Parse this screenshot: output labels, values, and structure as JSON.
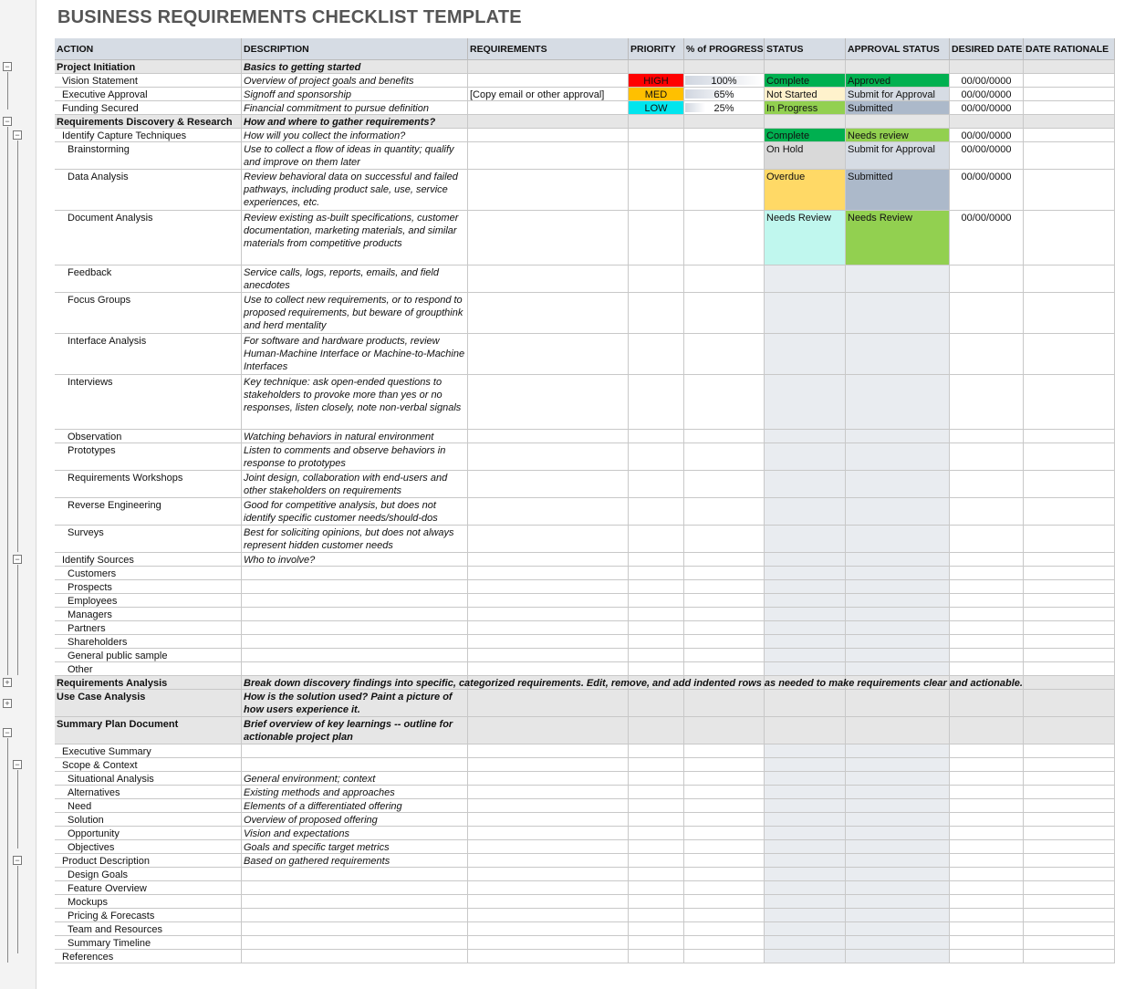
{
  "title": "BUSINESS REQUIREMENTS CHECKLIST TEMPLATE",
  "headers": [
    "ACTION",
    "DESCRIPTION",
    "REQUIREMENTS",
    "PRIORITY",
    "% of PROGRESS",
    "STATUS",
    "APPROVAL STATUS",
    "DESIRED DATE",
    "DATE RATIONALE"
  ],
  "colors": {
    "HIGH": "#ff0000",
    "MED": "#ffc000",
    "LOW": "#00e5ee",
    "Complete": "#00b050",
    "Approved": "#00b050",
    "Not Started": "#fff2cc",
    "Submit for Approval": "#d6dce4",
    "In Progress": "#92d050",
    "Submitted": "#acb9ca",
    "Needs review": "#92d050",
    "On Hold": "#d9d9d9",
    "Overdue": "#ffd966",
    "Needs Review": "#c0f7ee",
    "Needs Review (approval)": "#92d050",
    "header": "#d6dce4",
    "section": "#e6e6e6"
  },
  "rows": [
    {
      "action": "Project Initiation",
      "desc": "Basics to getting started",
      "kind": "sec",
      "lines": 1
    },
    {
      "action": "Vision Statement",
      "desc": "Overview of project goals and benefits",
      "priority": "HIGH",
      "progress": "100%",
      "status": "Complete",
      "approval": "Approved",
      "date": "00/00/0000",
      "lines": 1,
      "level": 1
    },
    {
      "action": "Executive Approval",
      "desc": "Signoff and sponsorship",
      "req": "[Copy email or other approval]",
      "priority": "MED",
      "progress": "65%",
      "status": "Not Started",
      "approval": "Submit for Approval",
      "date": "00/00/0000",
      "lines": 1,
      "level": 1
    },
    {
      "action": "Funding Secured",
      "desc": "Financial commitment to pursue definition",
      "priority": "LOW",
      "progress": "25%",
      "status": "In Progress",
      "approval": "Submitted",
      "date": "00/00/0000",
      "lines": 1,
      "level": 1
    },
    {
      "action": "Requirements Discovery & Research",
      "desc": "How and where to gather requirements?",
      "kind": "sec",
      "lines": 1
    },
    {
      "action": "Identify Capture Techniques",
      "desc": "How will you collect the information?",
      "status": "Complete",
      "approval": "Needs review",
      "date": "00/00/0000",
      "lines": 1,
      "level": 1
    },
    {
      "action": "Brainstorming",
      "desc": "Use to collect a flow of ideas in quantity; qualify and improve on them later",
      "status": "On Hold",
      "approval": "Submit for Approval",
      "date": "00/00/0000",
      "lines": 2,
      "level": 2
    },
    {
      "action": "Data Analysis",
      "desc": "Review behavioral data on successful and failed pathways, including product sale, use, service experiences, etc.",
      "status": "Overdue",
      "approval": "Submitted",
      "date": "00/00/0000",
      "lines": 3,
      "level": 2
    },
    {
      "action": "Document Analysis",
      "desc": "Review existing as-built specifications, customer documentation, marketing materials, and similar materials from competitive products",
      "status": "Needs Review",
      "approval": "Needs Review",
      "date": "00/00/0000",
      "lines": 4,
      "level": 2
    },
    {
      "action": "Feedback",
      "desc": "Service calls, logs, reports, emails, and field anecdotes",
      "lines": 2,
      "level": 2
    },
    {
      "action": "Focus Groups",
      "desc": "Use to collect new requirements, or to respond to proposed requirements, but beware of groupthink and herd mentality",
      "lines": 3,
      "level": 2
    },
    {
      "action": "Interface Analysis",
      "desc": "For software and hardware products, review Human-Machine Interface or Machine-to-Machine Interfaces",
      "lines": 3,
      "level": 2
    },
    {
      "action": "Interviews",
      "desc": "Key technique: ask open-ended questions to stakeholders to provoke more than yes or no responses, listen closely, note non-verbal signals",
      "lines": 4,
      "level": 2
    },
    {
      "action": "Observation",
      "desc": "Watching behaviors in natural environment",
      "lines": 1,
      "level": 2
    },
    {
      "action": "Prototypes",
      "desc": "Listen to comments and observe behaviors in response to prototypes",
      "lines": 2,
      "level": 2
    },
    {
      "action": "Requirements Workshops",
      "desc": "Joint design, collaboration with end-users and other stakeholders on requirements",
      "lines": 2,
      "level": 2
    },
    {
      "action": "Reverse Engineering",
      "desc": "Good for competitive analysis, but does not identify specific customer needs/should-dos",
      "lines": 2,
      "level": 2
    },
    {
      "action": "Surveys",
      "desc": "Best for soliciting opinions, but does not always represent hidden customer needs",
      "lines": 2,
      "level": 2
    },
    {
      "action": "Identify Sources",
      "desc": "Who to involve?",
      "lines": 1,
      "level": 1
    },
    {
      "action": "Customers",
      "lines": 1,
      "level": 2
    },
    {
      "action": "Prospects",
      "lines": 1,
      "level": 2
    },
    {
      "action": "Employees",
      "lines": 1,
      "level": 2
    },
    {
      "action": "Managers",
      "lines": 1,
      "level": 2
    },
    {
      "action": "Partners",
      "lines": 1,
      "level": 2
    },
    {
      "action": "Shareholders",
      "lines": 1,
      "level": 2
    },
    {
      "action": "General public sample",
      "lines": 1,
      "level": 2
    },
    {
      "action": "Other",
      "lines": 1,
      "level": 2
    },
    {
      "action": "Requirements Analysis",
      "desc": "Break down discovery findings into specific, categorized requirements. Edit, remove, and add indented rows as needed to make requirements clear and actionable.",
      "kind": "sec wide",
      "lines": 1
    },
    {
      "action": "Use Case Analysis",
      "desc": "How is the solution used? Paint a picture of how users experience it.",
      "kind": "sec",
      "lines": 2
    },
    {
      "action": "Summary Plan Document",
      "desc": "Brief overview of key learnings -- outline for actionable project plan",
      "kind": "sec",
      "lines": 2
    },
    {
      "action": "Executive Summary",
      "lines": 1,
      "level": 1
    },
    {
      "action": "Scope & Context",
      "lines": 1,
      "level": 1
    },
    {
      "action": "Situational Analysis",
      "desc": "General environment; context",
      "lines": 1,
      "level": 2
    },
    {
      "action": "Alternatives",
      "desc": "Existing methods and approaches",
      "lines": 1,
      "level": 2
    },
    {
      "action": "Need",
      "desc": "Elements of a differentiated offering",
      "lines": 1,
      "level": 2
    },
    {
      "action": "Solution",
      "desc": "Overview of proposed offering",
      "lines": 1,
      "level": 2
    },
    {
      "action": "Opportunity",
      "desc": "Vision and expectations",
      "lines": 1,
      "level": 2
    },
    {
      "action": "Objectives",
      "desc": "Goals and specific target metrics",
      "lines": 1,
      "level": 2
    },
    {
      "action": "Product Description",
      "desc": "Based on gathered requirements",
      "lines": 1,
      "level": 1
    },
    {
      "action": "Design Goals",
      "lines": 1,
      "level": 2
    },
    {
      "action": "Feature Overview",
      "lines": 1,
      "level": 2
    },
    {
      "action": "Mockups",
      "lines": 1,
      "level": 2
    },
    {
      "action": "Pricing & Forecasts",
      "lines": 1,
      "level": 2
    },
    {
      "action": "Team and Resources",
      "lines": 1,
      "level": 2
    },
    {
      "action": "Summary Timeline",
      "lines": 1,
      "level": 2
    },
    {
      "action": "References",
      "lines": 1,
      "level": 1
    }
  ]
}
